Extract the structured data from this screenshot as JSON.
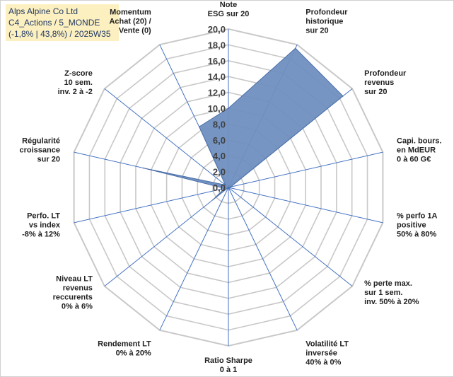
{
  "title_box": {
    "line1": "Alps Alpine Co Ltd",
    "line2": "C4_Actions / 5_MONDE",
    "line3": "(-1,8% | 43,8%) / 2025W35"
  },
  "chart_data": {
    "type": "radar",
    "categories": [
      [
        "Note",
        "ESG sur 20"
      ],
      [
        "Profondeur",
        "historique",
        "sur 20"
      ],
      [
        "Profondeur",
        "revenus",
        "sur 20"
      ],
      [
        "Capi. bours.",
        "en MdEUR",
        "0 à 60 G€"
      ],
      [
        "% perfo 1A",
        "positive",
        "50% à 80%"
      ],
      [
        "% perte max.",
        "sur 1 sem.",
        "inv. 50% à 20%"
      ],
      [
        "Volatilité LT",
        "inversée",
        "40% à 0%"
      ],
      [
        "Ratio Sharpe",
        "0 à 1"
      ],
      [
        "Rendement LT",
        "0% à 20%"
      ],
      [
        "Niveau LT",
        "revenus",
        "reccurents",
        "0% à 6%"
      ],
      [
        "Perfo. LT",
        "vs index",
        "-8% à 12%"
      ],
      [
        "Régularité",
        "croissance",
        "sur 20"
      ],
      [
        "Z-score",
        "10 sem.",
        "inv. 2 à -2"
      ],
      [
        "Momentum",
        "Achat (20) /",
        "Vente (0)"
      ]
    ],
    "values": [
      10,
      19.5,
      18.5,
      0.3,
      0,
      0,
      0,
      0,
      0,
      2.5,
      0.5,
      11,
      0.5,
      8.5
    ],
    "ylim": [
      0,
      20
    ],
    "tick_step": 2,
    "tick_labels": [
      "0,0",
      "2,0",
      "4,0",
      "6,0",
      "8,0",
      "10,0",
      "12,0",
      "14,0",
      "16,0",
      "18,0",
      "20,0"
    ],
    "grid": true,
    "legend": "none",
    "colors": {
      "fill": "#6f8fc0",
      "stroke": "#4a6fa8",
      "spoke": "#4472c4",
      "ring": "#c8c8c8"
    }
  }
}
